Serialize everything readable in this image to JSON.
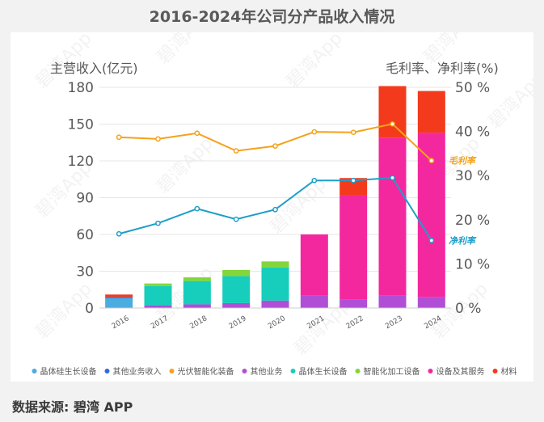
{
  "title": "2016-2024年公司分产品收入情况",
  "source": "数据来源: 碧湾 APP",
  "watermark": "碧湾App",
  "chart_data": {
    "type": "bar",
    "stacked": true,
    "title": "2016-2024年公司分产品收入情况",
    "left_axis_title": "主营收入(亿元)",
    "right_axis_title": "毛利率、净利率(%)",
    "categories": [
      "2016",
      "2017",
      "2018",
      "2019",
      "2020",
      "2021",
      "2022",
      "2023",
      "2024"
    ],
    "y_left": {
      "min": 0,
      "max": 180,
      "ticks": [
        "0",
        "30",
        "60",
        "90",
        "120",
        "150",
        "180"
      ]
    },
    "y_right": {
      "min": 0,
      "max": 50,
      "ticks": [
        "0 %",
        "10 %",
        "20 %",
        "30 %",
        "40 %",
        "50 %"
      ]
    },
    "grid": true,
    "legend_position": "bottom",
    "series": [
      {
        "name": "晶体硅生长设备",
        "color": "#4bacdf",
        "values": [
          8,
          0,
          0,
          0,
          0,
          0,
          0,
          0,
          0
        ]
      },
      {
        "name": "其他业务收入",
        "color": "#2f6ad9",
        "values": [
          1,
          0,
          0,
          0,
          0,
          0,
          0,
          0,
          0
        ]
      },
      {
        "name": "光伏智能化装备",
        "color": "#f5a31a",
        "values": [
          0,
          0,
          0,
          0,
          0,
          0,
          0,
          0,
          0
        ]
      },
      {
        "name": "其他业务",
        "color": "#b14ed6",
        "values": [
          0,
          2,
          3,
          4,
          6,
          10,
          7,
          10,
          9
        ]
      },
      {
        "name": "晶体生长设备",
        "color": "#17cdbb",
        "values": [
          0,
          16,
          19,
          22,
          27,
          0,
          0,
          0,
          0
        ]
      },
      {
        "name": "智能化加工设备",
        "color": "#82d63a",
        "values": [
          0,
          2,
          3,
          5,
          5,
          0,
          0,
          0,
          0
        ]
      },
      {
        "name": "设备及其服务",
        "color": "#f4289e",
        "values": [
          0,
          0,
          0,
          0,
          0,
          50,
          85,
          129,
          134
        ]
      },
      {
        "name": "材料",
        "color": "#f43a1c",
        "values": [
          2,
          0,
          0,
          0,
          0,
          0,
          14,
          42,
          34
        ]
      }
    ],
    "lines": [
      {
        "name": "毛利率",
        "axis": "right",
        "color": "#f4a21a",
        "values": [
          38.7,
          38.3,
          39.6,
          35.6,
          36.7,
          39.9,
          39.8,
          41.7,
          33.4
        ]
      },
      {
        "name": "净利率",
        "axis": "right",
        "color": "#1e9ec9",
        "values": [
          16.8,
          19.2,
          22.5,
          20.1,
          22.3,
          28.9,
          28.9,
          29.5,
          15.3
        ]
      }
    ]
  }
}
